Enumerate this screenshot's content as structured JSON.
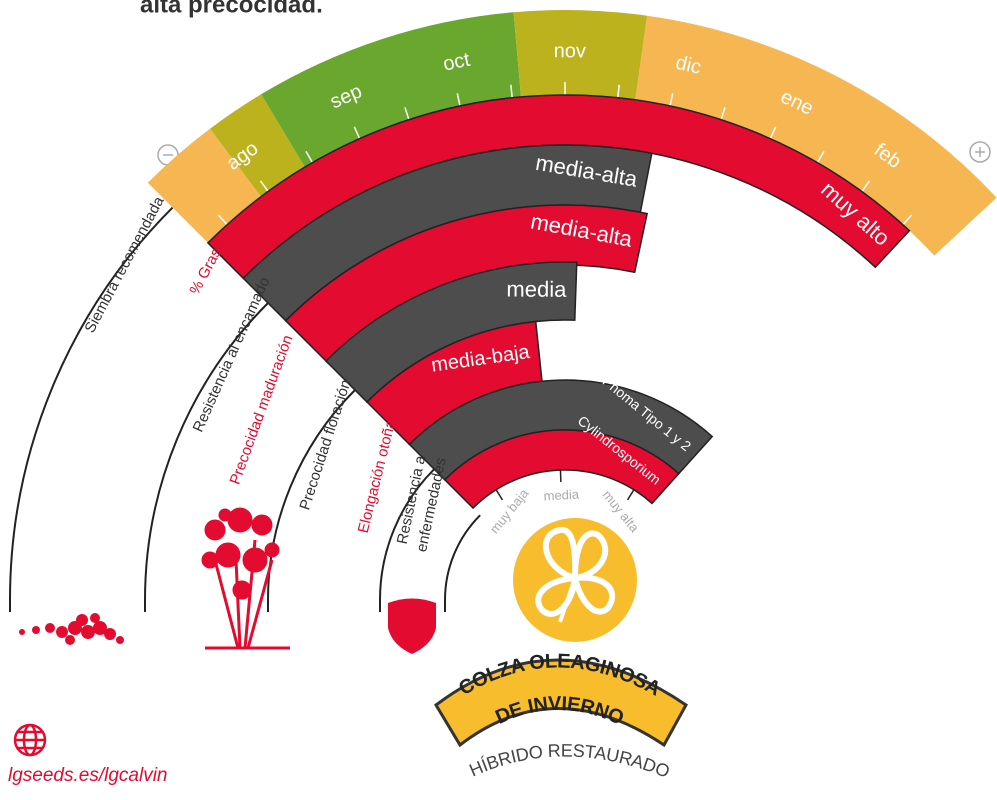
{
  "header": {
    "title": "alta precocidad."
  },
  "months": [
    "ago",
    "sep",
    "oct",
    "nov",
    "dic",
    "ene",
    "feb"
  ],
  "bars": [
    {
      "label": "muy alto"
    },
    {
      "label": "media-alta"
    },
    {
      "label": "media-alta"
    },
    {
      "label": "media"
    },
    {
      "label": "media-baja"
    },
    {
      "label": "Phoma Tipo 1 y 2"
    },
    {
      "label": "Cylindrosporium"
    }
  ],
  "scale": [
    "muy baja",
    "media",
    "muy alta"
  ],
  "rows": [
    "Siembra recomendada",
    "% Grasa",
    "Resistencia al encamado",
    "Precocidad maduración",
    "Precocidad floración",
    "Elongación otoñal",
    "Resistencia a",
    "enfermedades"
  ],
  "badge": {
    "line1": "COLZA OLEAGINOSA",
    "line2": "DE INVIERNO",
    "subtitle": "HÍBRIDO RESTAURADO"
  },
  "footer": {
    "link": "lgseeds.es/lgcalvin"
  }
}
